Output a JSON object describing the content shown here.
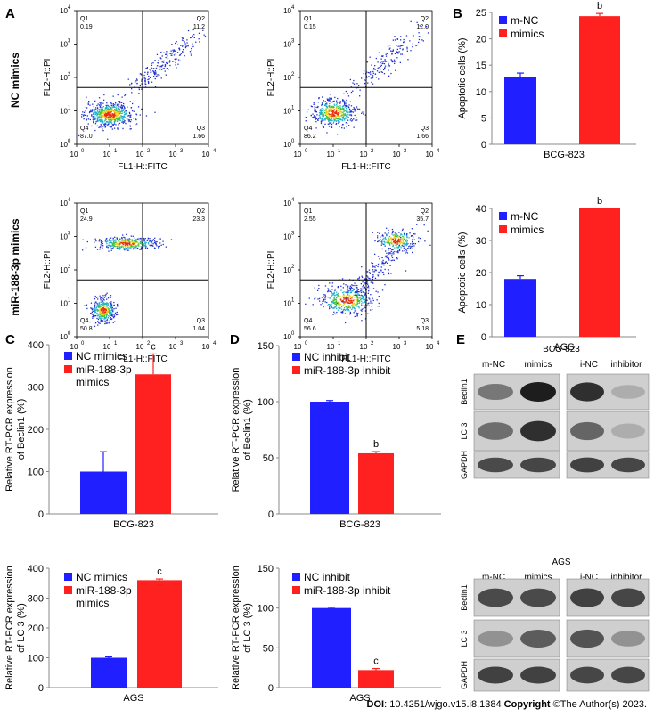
{
  "panel_letters": [
    "A",
    "B",
    "C",
    "D",
    "E"
  ],
  "row_labels": {
    "nc": "NC mimics",
    "mir": "miR-188-3p mimics"
  },
  "flow_axes": {
    "x_label": "FL1-H::FITC",
    "y_label": "FL2-H::PI",
    "x_ticks": [
      "10",
      "10",
      "10",
      "10",
      "10"
    ],
    "y_ticks": [
      "10",
      "10",
      "10",
      "10",
      "10"
    ],
    "tick_exponents": [
      "0",
      "1",
      "2",
      "3",
      "4"
    ],
    "quadrant_names": [
      "Q1",
      "Q2",
      "Q3",
      "Q4"
    ]
  },
  "flow_plots": [
    {
      "q1": "0.19",
      "q2": "11.2",
      "q3": "1.66",
      "q4": "87.0"
    },
    {
      "q1": "0.15",
      "q2": "12.0",
      "q3": "1.66",
      "q4": "86.2"
    },
    {
      "q1": "24.9",
      "q2": "23.3",
      "q3": "1.04",
      "q4": "50.8"
    },
    {
      "q1": "2.55",
      "q2": "35.7",
      "q3": "5.18",
      "q4": "56.6"
    }
  ],
  "western": {
    "groups": [
      {
        "cell_line": "BCG-823",
        "lanes": [
          "m-NC",
          "mimics",
          "i-NC",
          "inhibitor"
        ]
      },
      {
        "cell_line": "AGS",
        "lanes": [
          "m-NC",
          "mimics",
          "i-NC",
          "inhibitor"
        ]
      }
    ],
    "proteins": [
      "Beclin1",
      "LC 3",
      "GAPDH"
    ]
  },
  "colors": {
    "blue": "#1f1fff",
    "red": "#ff2020"
  },
  "footer": {
    "doi_label": "DOI",
    "doi_text": ": 10.4251/wjgo.v15.i8.1384 ",
    "copyright_label": "Copyright",
    "copyright_text": " ©The Author(s) 2023."
  },
  "chart_data": [
    {
      "type": "bar",
      "panel": "B",
      "title": "",
      "xlabel": "BCG-823",
      "ylabel": "Apoptotic cells (%)",
      "ylim": [
        0,
        25
      ],
      "yticks": [
        "0",
        "5",
        "10",
        "15",
        "20",
        "25"
      ],
      "categories": [
        "m-NC",
        "mimics"
      ],
      "legend": [
        "m-NC",
        "mimics"
      ],
      "values": [
        12.8,
        24.3
      ],
      "errors": [
        0.7,
        0.5
      ],
      "sig": [
        "",
        "b"
      ]
    },
    {
      "type": "bar",
      "panel": "B",
      "title": "",
      "xlabel": "AGS",
      "ylabel": "Apoptotic cells (%)",
      "ylim": [
        0,
        40
      ],
      "yticks": [
        "0",
        "10",
        "20",
        "30",
        "40"
      ],
      "categories": [
        "m-NC",
        "mimics"
      ],
      "legend": [
        "m-NC",
        "mimics"
      ],
      "values": [
        18,
        40
      ],
      "errors": [
        1,
        0
      ],
      "sig": [
        "",
        "b"
      ]
    },
    {
      "type": "bar",
      "panel": "C",
      "title": "",
      "xlabel": "BCG-823",
      "ylabel": "Relative RT-PCR expression of Beclin1 (%)",
      "ylim": [
        0,
        400
      ],
      "yticks": [
        "0",
        "100",
        "200",
        "300",
        "400"
      ],
      "categories": [
        "NC mimics",
        "miR-188-3p mimics"
      ],
      "legend": [
        "NC mimics",
        "miR-188-3p mimics"
      ],
      "values": [
        100,
        330
      ],
      "errors": [
        47,
        48
      ],
      "sig": [
        "",
        "c"
      ]
    },
    {
      "type": "bar",
      "panel": "D",
      "title": "",
      "xlabel": "BCG-823",
      "ylabel": "Relative RT-PCR expression of Beclin1 (%)",
      "ylim": [
        0,
        150
      ],
      "yticks": [
        "0",
        "50",
        "100",
        "150"
      ],
      "categories": [
        "NC inhibit",
        "miR-188-3p inhibit"
      ],
      "legend": [
        "NC inhibit",
        "miR-188-3p inhibit"
      ],
      "values": [
        100,
        54
      ],
      "errors": [
        1,
        1.5
      ],
      "sig": [
        "",
        "b"
      ]
    },
    {
      "type": "bar",
      "panel": "C",
      "title": "",
      "xlabel": "AGS",
      "ylabel": "Relative RT-PCR expression of LC 3 (%)",
      "ylim": [
        0,
        400
      ],
      "yticks": [
        "0",
        "100",
        "200",
        "300",
        "400"
      ],
      "categories": [
        "NC mimics",
        "miR-188-3p mimics"
      ],
      "legend": [
        "NC mimics",
        "miR-188-3p mimics"
      ],
      "values": [
        100,
        360
      ],
      "errors": [
        3,
        4
      ],
      "sig": [
        "",
        "c"
      ]
    },
    {
      "type": "bar",
      "panel": "D",
      "title": "",
      "xlabel": "AGS",
      "ylabel": "Relative RT-PCR expression of LC 3 (%)",
      "ylim": [
        0,
        150
      ],
      "yticks": [
        "0",
        "50",
        "100",
        "150"
      ],
      "categories": [
        "NC inhibit",
        "miR-188-3p inhibit"
      ],
      "legend": [
        "NC inhibit",
        "miR-188-3p inhibit"
      ],
      "values": [
        100,
        22
      ],
      "errors": [
        1,
        2
      ],
      "sig": [
        "",
        "c"
      ]
    }
  ]
}
